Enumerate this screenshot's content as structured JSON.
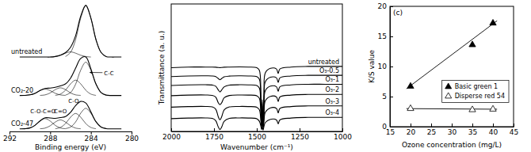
{
  "chart_data": [
    {
      "type": "line",
      "tick_labels": "x",
      "xlabel": "Binding energy (eV)",
      "xlim": [
        292,
        280
      ],
      "xticks": [
        292,
        288,
        284,
        280
      ],
      "ylim": [
        0,
        100
      ],
      "series": [
        {
          "name": "untreated",
          "color": "#000000",
          "x": [
            291,
            290.5,
            290,
            289.5,
            289,
            288.5,
            288,
            287.5,
            287,
            286.5,
            286,
            285.5,
            285,
            284.5,
            284,
            283.5,
            283,
            282.5,
            282,
            281.5,
            281
          ],
          "values": [
            58,
            58,
            58,
            58,
            58,
            58,
            58,
            58.4,
            59.4,
            61.4,
            65.6,
            74.6,
            89.8,
            98.4,
            88.4,
            71.6,
            61.6,
            58.4,
            58,
            58,
            58
          ],
          "components": [
            {
              "x": [
                286.5,
                286,
                285.5,
                285,
                284.5,
                284,
                283.5,
                283,
                282.5
              ],
              "values": [
                58.4,
                61.6,
                71.6,
                88.4,
                98,
                88.4,
                71.6,
                61.6,
                58.4
              ]
            },
            {
              "x": [
                288,
                287.5,
                287,
                286.5,
                286,
                285.5,
                285,
                284.5,
                284
              ],
              "values": [
                58,
                58.4,
                59.4,
                61,
                62,
                61,
                59.4,
                58.4,
                58
              ]
            }
          ]
        },
        {
          "name": "CO₂-20",
          "color": "#000000",
          "x": [
            291,
            290.5,
            290,
            289.5,
            289,
            288.5,
            288,
            287.5,
            287,
            286.5,
            286,
            285.5,
            285,
            284.5,
            284,
            283.5,
            283,
            282.5,
            282,
            281.5,
            281
          ],
          "values": [
            28,
            28.1,
            28.5,
            29.7,
            31.9,
            33.5,
            33.8,
            34.4,
            35.5,
            37,
            41.5,
            49.4,
            56.9,
            58.1,
            48.8,
            37,
            30.3,
            28.3,
            28,
            28,
            28
          ],
          "components": [
            {
              "x": [
                290.5,
                290,
                289.5,
                289,
                288.5,
                288,
                287.5,
                287,
                286.5
              ],
              "values": [
                28.1,
                28.5,
                29.7,
                31.8,
                33,
                31.8,
                29.7,
                28.5,
                28.1
              ]
            },
            {
              "x": [
                289,
                288.5,
                288,
                287.5,
                287,
                286.5,
                286,
                285.5,
                285
              ],
              "values": [
                28.1,
                28.5,
                30,
                32.6,
                34,
                32.6,
                30,
                28.5,
                28.1
              ]
            },
            {
              "x": [
                287.5,
                287,
                286.5,
                286,
                285.5,
                285,
                284.5,
                284,
                283.5
              ],
              "values": [
                28.1,
                29.1,
                32.1,
                37.1,
                40,
                37.1,
                32.1,
                29.1,
                28.1
              ]
            },
            {
              "x": [
                286.5,
                286,
                285.5,
                285,
                284.5,
                284,
                283.5,
                283,
                282.5
              ],
              "values": [
                28.3,
                30.3,
                36.8,
                47.8,
                54,
                47.8,
                36.8,
                30.3,
                28.3
              ]
            }
          ]
        },
        {
          "name": "CO₂-47",
          "color": "#000000",
          "x": [
            291,
            290.5,
            290,
            289.5,
            289,
            288.5,
            288,
            287.5,
            287,
            286.5,
            286,
            285.5,
            285,
            284.5,
            284,
            283.5,
            283,
            282.5,
            282,
            281.5,
            281
          ],
          "values": [
            2,
            2.1,
            2.7,
            4.7,
            8.2,
            10.6,
            10.5,
            10.2,
            10.8,
            11.6,
            14.9,
            20.1,
            23.4,
            22.1,
            15.2,
            7.6,
            3.4,
            2.2,
            2,
            2,
            2
          ],
          "components": [
            {
              "x": [
                290.5,
                290,
                289.5,
                289,
                288.5,
                288,
                287.5,
                287,
                286.5
              ],
              "values": [
                2.1,
                2.7,
                4.7,
                8.1,
                10,
                8.1,
                4.7,
                2.7,
                2.1
              ]
            },
            {
              "x": [
                289,
                288.5,
                288,
                287.5,
                287,
                286.5,
                286,
                285.5,
                285
              ],
              "values": [
                2.1,
                2.6,
                4.4,
                7.3,
                9,
                7.3,
                4.4,
                2.6,
                2.1
              ]
            },
            {
              "x": [
                287.5,
                287,
                286.5,
                286,
                285.5,
                285,
                284.5,
                284,
                283.5
              ],
              "values": [
                2.1,
                3.1,
                6.1,
                11.1,
                14,
                11.1,
                6.1,
                3.1,
                2.1
              ]
            },
            {
              "x": [
                286.5,
                286,
                285.5,
                285,
                284.5,
                284,
                283.5,
                283,
                282.5
              ],
              "values": [
                2.2,
                3.4,
                7.4,
                14.2,
                18,
                14.2,
                7.4,
                3.4,
                2.2
              ]
            }
          ]
        }
      ],
      "annotations": [
        {
          "text": "C-C",
          "x": 282.7,
          "y": 44,
          "arrow_to": [
            284.1,
            46
          ]
        },
        {
          "text": "C-O-C=O",
          "x": 288.7,
          "y": 14
        },
        {
          "text": "C=O",
          "x": 287.0,
          "y": 14.5
        },
        {
          "text": "C-O",
          "x": 285.7,
          "y": 22.5
        }
      ]
    },
    {
      "type": "line",
      "tick_labels": "x",
      "xlabel": "Wavenumber (cm⁻¹)",
      "ylabel": "Transmittance (a. u.)",
      "xlim": [
        2000,
        1000
      ],
      "xticks": [
        2000,
        1750,
        1500,
        1250,
        1000
      ],
      "ylim": [
        0,
        100
      ],
      "x": [
        2000,
        1900,
        1800,
        1760,
        1740,
        1725,
        1715,
        1705,
        1690,
        1660,
        1600,
        1550,
        1500,
        1485,
        1476,
        1472,
        1468,
        1463,
        1458,
        1450,
        1420,
        1385,
        1375,
        1365,
        1300,
        1200,
        1100,
        1000
      ],
      "series": [
        {
          "name": "untreated",
          "color": "#000000",
          "values": [
            50,
            50.5,
            50.5,
            50.5,
            50.4,
            50.2,
            50,
            50.2,
            50.4,
            50.5,
            50.6,
            50.5,
            50,
            48,
            30,
            8,
            25,
            6,
            30,
            46,
            49.5,
            49,
            45.5,
            49,
            50.5,
            51,
            51,
            51
          ]
        },
        {
          "name": "O₃-0.5",
          "color": "#000000",
          "values": [
            43,
            43.5,
            43.6,
            43.5,
            43,
            41.5,
            40.5,
            41.5,
            42.8,
            43.4,
            43.6,
            43.5,
            43,
            41,
            24,
            6,
            20,
            5,
            24,
            39,
            42.5,
            42,
            38.5,
            42,
            43.5,
            44,
            44,
            44
          ]
        },
        {
          "name": "O₃-1",
          "color": "#000000",
          "values": [
            36,
            36.5,
            36.6,
            36.4,
            35.5,
            32.5,
            31,
            32.5,
            35,
            36.3,
            36.6,
            36.5,
            36,
            34,
            18,
            5,
            15,
            4,
            18,
            32,
            35.5,
            35,
            31.5,
            35,
            36.5,
            37,
            37,
            37
          ]
        },
        {
          "name": "O₃-2",
          "color": "#000000",
          "values": [
            28,
            28.5,
            28.6,
            28.3,
            27,
            22.5,
            21,
            22.5,
            26.5,
            28.2,
            28.6,
            28.5,
            28,
            26,
            12,
            4,
            10,
            3.5,
            12,
            24,
            27.5,
            27,
            23.5,
            27,
            28.5,
            29,
            29,
            29
          ]
        },
        {
          "name": "O₃-3",
          "color": "#000000",
          "values": [
            19,
            19.5,
            19.6,
            19.2,
            17.5,
            11.5,
            9,
            11.5,
            17,
            19.2,
            19.6,
            19.5,
            19,
            17,
            8,
            3,
            7,
            2.5,
            8,
            15,
            18.5,
            18,
            14.5,
            18,
            19.5,
            20,
            20,
            20
          ]
        },
        {
          "name": "O₃-4",
          "color": "#000000",
          "values": [
            10,
            10.5,
            10.6,
            10.2,
            8.5,
            3.5,
            1.5,
            3.5,
            8,
            10.2,
            10.6,
            10.5,
            10,
            8,
            4,
            1.5,
            3.5,
            1,
            4,
            7,
            9.5,
            9,
            6,
            9,
            10.5,
            11,
            11,
            11
          ]
        }
      ]
    },
    {
      "type": "scatter",
      "title": "(c)",
      "xlabel": "Ozone concentration (mg/L)",
      "ylabel": "K/S value",
      "xlim": [
        15,
        45
      ],
      "xticks": [
        15,
        20,
        25,
        30,
        35,
        40,
        45
      ],
      "ylim": [
        0,
        20
      ],
      "yticks": [
        0,
        5,
        10,
        15,
        20
      ],
      "legend": "right",
      "series": [
        {
          "name": "Basic green 1",
          "color": "#000000",
          "marker": "triangle",
          "x": [
            20,
            35,
            40
          ],
          "values": [
            6.7,
            13.6,
            17.2
          ],
          "trend": {
            "x": [
              19,
              41
            ],
            "values": [
              6.3,
              17.6
            ]
          }
        },
        {
          "name": "Disperse red 54",
          "color": "#000000",
          "marker": "triangle-open",
          "x": [
            20,
            35,
            40
          ],
          "values": [
            3.0,
            2.8,
            2.9
          ],
          "trend": {
            "x": [
              19,
              41
            ],
            "values": [
              3.0,
              2.9
            ]
          }
        }
      ]
    }
  ]
}
